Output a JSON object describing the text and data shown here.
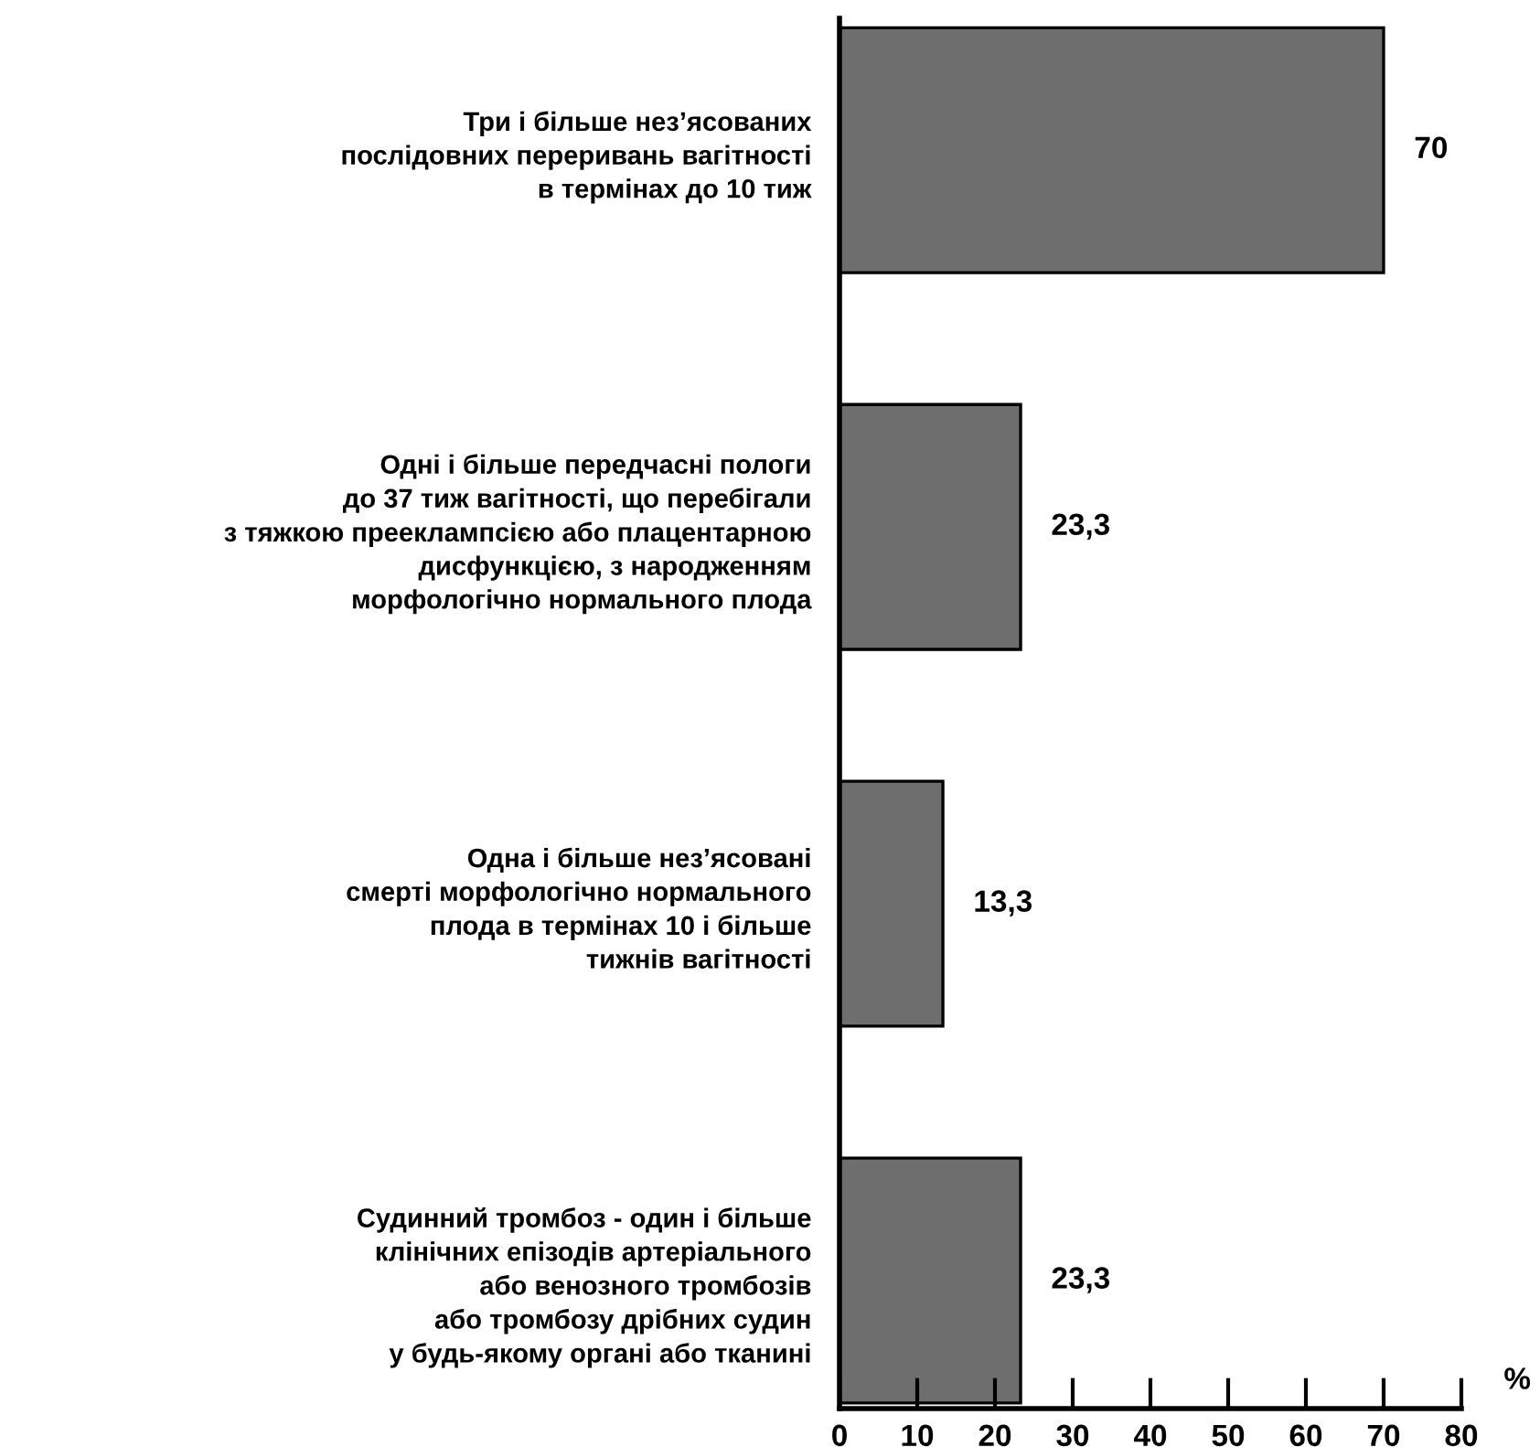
{
  "chart_data": {
    "type": "bar",
    "orientation": "horizontal",
    "xlabel": "%",
    "categories": [
      "Три і більше нез’ясованих\nпослідовних переривань вагітності\nв термінах до 10 тиж",
      "Одні і більше передчасні пологи\nдо 37 тиж вагітності, що перебігали\nз тяжкою прееклампсією або плацентарною\nдисфункцією, з народженням\nморфологічно нормального плода",
      "Одна і більше нез’ясовані\nсмерті морфологічно нормального\nплода в термінах 10 і більше\nтижнів вагітності",
      "Судинний тромбоз - один і більше\nклінічних епізодів артеріального\nабо венозного тромбозів\nабо тромбозу дрібних судин\nу будь-якому органі або тканині"
    ],
    "values": [
      70,
      23.3,
      13.3,
      23.3
    ],
    "value_labels": [
      "70",
      "23,3",
      "13,3",
      "23,3"
    ],
    "color": "#6e6e6e",
    "xlim": [
      0,
      80
    ],
    "xticks": [
      0,
      10,
      20,
      30,
      40,
      50,
      60,
      70,
      80
    ],
    "grid": false,
    "legend": false
  }
}
